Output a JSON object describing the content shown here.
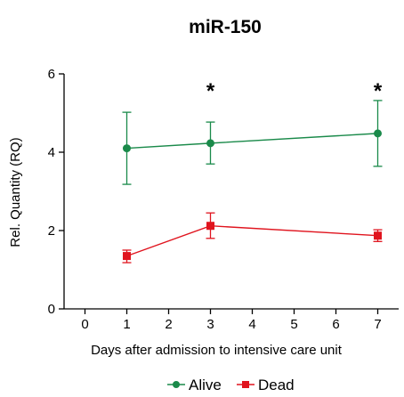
{
  "chart_data": {
    "type": "line",
    "title": "miR-150",
    "xlabel": "Days after admission to intensive care unit",
    "ylabel": "Rel. Quantity (RQ)",
    "xlim": [
      -0.5,
      7.5
    ],
    "ylim": [
      0,
      6
    ],
    "x_ticks": [
      0,
      1,
      2,
      3,
      4,
      5,
      6,
      7
    ],
    "y_ticks": [
      0,
      2,
      4,
      6
    ],
    "grid": false,
    "legend_position": "bottom-center",
    "series": [
      {
        "name": "Alive",
        "color": "#1a8a4a",
        "marker": "circle",
        "x": [
          1,
          3,
          7
        ],
        "y": [
          4.1,
          4.23,
          4.48
        ],
        "err_upper": [
          5.02,
          4.77,
          5.32
        ],
        "err_lower": [
          3.18,
          3.7,
          3.64
        ]
      },
      {
        "name": "Dead",
        "color": "#e0141e",
        "marker": "square",
        "x": [
          1,
          3,
          7
        ],
        "y": [
          1.35,
          2.12,
          1.87
        ],
        "err_upper": [
          1.5,
          2.45,
          2.02
        ],
        "err_lower": [
          1.18,
          1.8,
          1.72
        ]
      }
    ],
    "annotations": [
      {
        "text": "*",
        "x": 3
      },
      {
        "text": "*",
        "x": 7
      }
    ]
  }
}
